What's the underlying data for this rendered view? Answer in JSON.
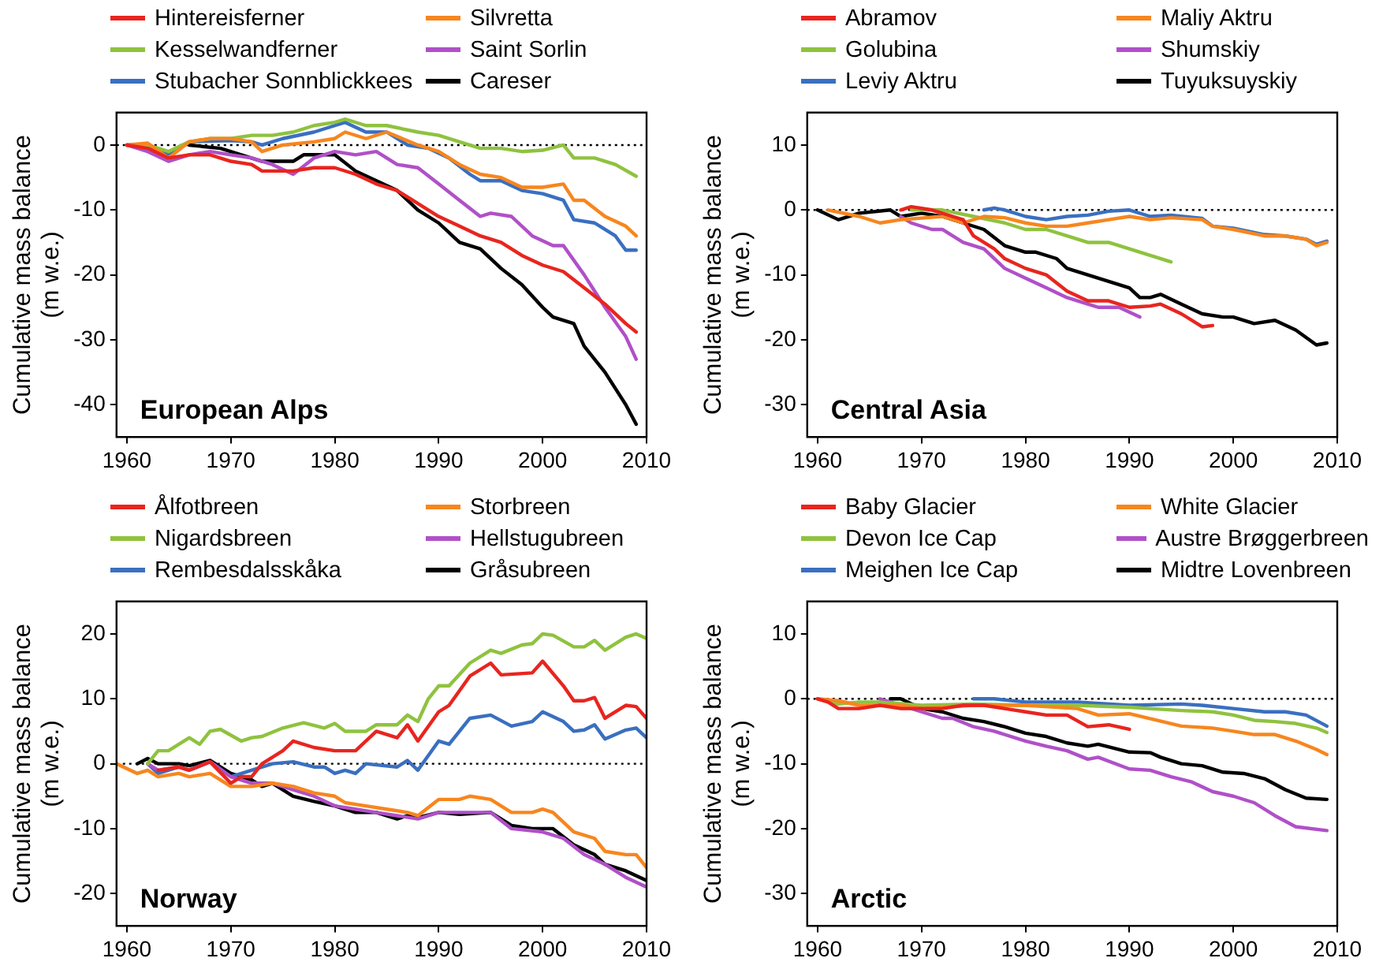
{
  "chart_data": [
    {
      "type": "line",
      "ylabel": "Cumulative mass balance (m w.e.)",
      "legend": "top",
      "annotations": [
        "European Alps"
      ],
      "xlim": [
        1959,
        2010
      ],
      "xticks": [
        1960,
        1970,
        1980,
        1990,
        2000,
        2010
      ],
      "ylim": [
        -45,
        5
      ],
      "yticks": [
        -40,
        -30,
        -20,
        -10,
        0
      ],
      "ref_lines": [
        {
          "axis": "y",
          "value": 0,
          "color": "#000000",
          "line_style": "dotted"
        }
      ],
      "series": [
        {
          "name": "Hintereisferner",
          "color": "#e8251f",
          "x": [
            1960,
            1962,
            1964,
            1966,
            1968,
            1970,
            1972,
            1973,
            1976,
            1978,
            1980,
            1982,
            1984,
            1986,
            1988,
            1990,
            1992,
            1994,
            1996,
            1998,
            2000,
            2002,
            2004,
            2006,
            2008,
            2009
          ],
          "values": [
            0,
            -0.5,
            -2,
            -1.5,
            -1.5,
            -2.5,
            -3,
            -4,
            -4,
            -3.5,
            -3.5,
            -4.5,
            -6,
            -7,
            -9,
            -11,
            -12.5,
            -14,
            -15,
            -17,
            -18.5,
            -19.5,
            -22,
            -24.5,
            -27.5,
            -28.8
          ]
        },
        {
          "name": "Silvretta",
          "color": "#f7861e",
          "x": [
            1960,
            1962,
            1964,
            1966,
            1968,
            1970,
            1972,
            1973,
            1975,
            1978,
            1980,
            1981,
            1983,
            1985,
            1988,
            1990,
            1992,
            1994,
            1996,
            1998,
            2000,
            2002,
            2003,
            2004,
            2006,
            2008,
            2009
          ],
          "values": [
            0,
            0.3,
            -2,
            0.5,
            1,
            1,
            0.5,
            -1,
            0,
            0.5,
            1,
            2,
            1,
            2,
            0,
            -1,
            -3,
            -4.5,
            -5,
            -6.5,
            -6.5,
            -6,
            -8.5,
            -8.5,
            -11,
            -12.5,
            -14
          ]
        },
        {
          "name": "Kesselwandferner",
          "color": "#8fc23f",
          "x": [
            1960,
            1962,
            1964,
            1966,
            1968,
            1970,
            1972,
            1974,
            1976,
            1978,
            1980,
            1981,
            1983,
            1985,
            1988,
            1990,
            1992,
            1994,
            1996,
            1998,
            2000,
            2002,
            2003,
            2005,
            2007,
            2009
          ],
          "values": [
            0,
            0,
            -1,
            0.5,
            1,
            1,
            1.5,
            1.5,
            2,
            3,
            3.5,
            4,
            3,
            3,
            2,
            1.5,
            0.5,
            -0.5,
            -0.5,
            -1,
            -0.8,
            0,
            -2,
            -2,
            -3,
            -4.8
          ]
        },
        {
          "name": "Saint Sorlin",
          "color": "#b050c8",
          "x": [
            1960,
            1962,
            1964,
            1966,
            1968,
            1970,
            1972,
            1974,
            1976,
            1978,
            1980,
            1982,
            1984,
            1986,
            1988,
            1990,
            1992,
            1994,
            1995,
            1997,
            1999,
            2001,
            2002,
            2004,
            2006,
            2008,
            2009
          ],
          "values": [
            0,
            -1,
            -2.5,
            -1.5,
            -1,
            -1.5,
            -2,
            -3,
            -4.5,
            -2,
            -1,
            -1.5,
            -1,
            -3,
            -3.5,
            -6,
            -8.5,
            -11,
            -10.5,
            -11,
            -14,
            -15.5,
            -15.5,
            -20,
            -25,
            -29.5,
            -33
          ]
        },
        {
          "name": "Stubacher Sonnblickkees",
          "color": "#3a6fc0",
          "x": [
            1960,
            1962,
            1964,
            1966,
            1968,
            1970,
            1972,
            1973,
            1975,
            1978,
            1980,
            1981,
            1983,
            1985,
            1987,
            1989,
            1991,
            1993,
            1994,
            1996,
            1998,
            2000,
            2002,
            2003,
            2005,
            2007,
            2008,
            2009
          ],
          "values": [
            0,
            0,
            -1.5,
            0.5,
            0.6,
            0.7,
            0.5,
            0,
            1,
            2,
            3,
            3.5,
            2,
            2,
            0,
            -0.5,
            -2,
            -4.5,
            -5.5,
            -5.5,
            -7,
            -7.5,
            -8.5,
            -11.5,
            -12,
            -14,
            -16.2,
            -16.2
          ]
        },
        {
          "name": "Careser",
          "color": "#000000",
          "x": [
            1966,
            1969,
            1971,
            1973,
            1976,
            1977,
            1980,
            1982,
            1984,
            1986,
            1988,
            1990,
            1992,
            1994,
            1996,
            1998,
            2000,
            2001,
            2003,
            2004,
            2006,
            2008,
            2009
          ],
          "values": [
            0,
            -0.5,
            -1.5,
            -2.5,
            -2.5,
            -1.5,
            -1.5,
            -4,
            -5.5,
            -7,
            -10,
            -12,
            -15,
            -16,
            -19,
            -21.5,
            -25,
            -26.5,
            -27.5,
            -31,
            -35,
            -40,
            -43
          ]
        }
      ]
    },
    {
      "type": "line",
      "ylabel": "Cumulative mass balance (m w.e.)",
      "legend": "top",
      "annotations": [
        "Central Asia"
      ],
      "xlim": [
        1959,
        2010
      ],
      "xticks": [
        1960,
        1970,
        1980,
        1990,
        2000,
        2010
      ],
      "ylim": [
        -35,
        15
      ],
      "yticks": [
        -30,
        -20,
        -10,
        0,
        10
      ],
      "ref_lines": [
        {
          "axis": "y",
          "value": 0,
          "color": "#000000",
          "line_style": "dotted"
        }
      ],
      "series": [
        {
          "name": "Abramov",
          "color": "#e8251f",
          "x": [
            1968,
            1969,
            1971,
            1973,
            1974,
            1975,
            1977,
            1978,
            1980,
            1982,
            1984,
            1986,
            1988,
            1990,
            1992,
            1993,
            1995,
            1997,
            1998
          ],
          "values": [
            0,
            0.5,
            0,
            -1,
            -1.5,
            -4,
            -6,
            -7.5,
            -9,
            -10,
            -12.5,
            -14,
            -14,
            -15,
            -14.8,
            -14.5,
            -16,
            -18,
            -17.8
          ]
        },
        {
          "name": "Maliy Aktru",
          "color": "#f7861e",
          "x": [
            1961,
            1964,
            1966,
            1968,
            1972,
            1974,
            1976,
            1978,
            1980,
            1982,
            1984,
            1986,
            1988,
            1990,
            1992,
            1994,
            1997,
            1998,
            2000,
            2003,
            2005,
            2007,
            2008,
            2009
          ],
          "values": [
            0,
            -1,
            -2,
            -1.5,
            -1,
            -2,
            -1,
            -1.2,
            -2,
            -2.5,
            -2.5,
            -2,
            -1.5,
            -1,
            -1.5,
            -1.2,
            -1.5,
            -2.5,
            -3,
            -4,
            -4,
            -4.5,
            -5.5,
            -5
          ]
        },
        {
          "name": "Golubina",
          "color": "#8fc23f",
          "x": [
            1969,
            1972,
            1975,
            1978,
            1980,
            1982,
            1984,
            1986,
            1988,
            1990,
            1992,
            1994
          ],
          "values": [
            0,
            0,
            -1,
            -2,
            -3,
            -3,
            -4,
            -5,
            -5,
            -6,
            -7,
            -8
          ]
        },
        {
          "name": "Shumskiy",
          "color": "#b050c8",
          "x": [
            1968,
            1969,
            1971,
            1972,
            1974,
            1976,
            1978,
            1980,
            1982,
            1984,
            1986,
            1987,
            1989,
            1991
          ],
          "values": [
            -1,
            -2,
            -3,
            -3,
            -5,
            -6,
            -9,
            -10.5,
            -12,
            -13.5,
            -14.5,
            -15,
            -15,
            -16.5
          ]
        },
        {
          "name": "Leviy Aktru",
          "color": "#3a6fc0",
          "x": [
            1976,
            1977,
            1978,
            1980,
            1982,
            1984,
            1986,
            1988,
            1990,
            1992,
            1994,
            1997,
            1998,
            2000,
            2003,
            2005,
            2007,
            2008,
            2009
          ],
          "values": [
            0,
            0.3,
            0,
            -1,
            -1.5,
            -1,
            -0.8,
            -0.2,
            0,
            -1,
            -0.8,
            -1.3,
            -2.5,
            -2.8,
            -3.8,
            -4,
            -4.5,
            -5.3,
            -4.8
          ]
        },
        {
          "name": "Tuyuksuyskiy",
          "color": "#000000",
          "x": [
            1960,
            1962,
            1964,
            1967,
            1968,
            1970,
            1972,
            1974,
            1976,
            1978,
            1980,
            1981,
            1983,
            1984,
            1986,
            1988,
            1990,
            1991,
            1992,
            1993,
            1995,
            1997,
            1999,
            2000,
            2002,
            2004,
            2006,
            2008,
            2009
          ],
          "values": [
            0,
            -1.5,
            -0.5,
            0,
            -1,
            -0.5,
            -1,
            -2,
            -3,
            -5.5,
            -6.5,
            -6.5,
            -7.5,
            -9,
            -10,
            -11,
            -12,
            -13.5,
            -13.5,
            -13,
            -14.5,
            -16,
            -16.5,
            -16.5,
            -17.5,
            -17,
            -18.5,
            -20.8,
            -20.5
          ]
        }
      ]
    },
    {
      "type": "line",
      "ylabel": "Cumulative mass balance (m w.e.)",
      "legend": "top",
      "annotations": [
        "Norway"
      ],
      "xlim": [
        1959,
        2010
      ],
      "xticks": [
        1960,
        1970,
        1980,
        1990,
        2000,
        2010
      ],
      "ylim": [
        -25,
        25
      ],
      "yticks": [
        -20,
        -10,
        0,
        10,
        20
      ],
      "ref_lines": [
        {
          "axis": "y",
          "value": 0,
          "color": "#000000",
          "line_style": "dotted"
        }
      ],
      "series": [
        {
          "name": "Ålfotbreen",
          "color": "#e8251f",
          "x": [
            1963,
            1965,
            1966,
            1968,
            1970,
            1971,
            1972,
            1973,
            1975,
            1976,
            1978,
            1980,
            1982,
            1984,
            1986,
            1987,
            1988,
            1990,
            1991,
            1993,
            1995,
            1996,
            1999,
            2000,
            2002,
            2003,
            2004,
            2005,
            2006,
            2008,
            2009,
            2010
          ],
          "values": [
            -1,
            -0.5,
            -1,
            0.3,
            -3,
            -2,
            -2,
            0,
            2,
            3.5,
            2.5,
            2,
            2,
            5,
            4,
            6,
            3.5,
            8,
            9,
            13.5,
            15.5,
            13.7,
            14,
            15.8,
            12,
            9.7,
            9.7,
            10.2,
            7,
            9,
            8.8,
            7
          ]
        },
        {
          "name": "Storbreen",
          "color": "#f7861e",
          "x": [
            1959,
            1961,
            1962,
            1963,
            1965,
            1966,
            1968,
            1970,
            1972,
            1974,
            1976,
            1978,
            1980,
            1981,
            1983,
            1985,
            1987,
            1988,
            1990,
            1992,
            1993,
            1995,
            1997,
            1999,
            2000,
            2001,
            2003,
            2005,
            2006,
            2008,
            2009,
            2010
          ],
          "values": [
            0,
            -1.5,
            -1,
            -2,
            -1.5,
            -2,
            -1.5,
            -3.5,
            -3.5,
            -3,
            -3.5,
            -4.5,
            -5,
            -6,
            -6.5,
            -7,
            -7.5,
            -8,
            -5.5,
            -5.5,
            -5,
            -5.5,
            -7.5,
            -7.5,
            -7,
            -7.5,
            -10.5,
            -11.5,
            -13.5,
            -14,
            -14,
            -16
          ]
        },
        {
          "name": "Nigardsbreen",
          "color": "#8fc23f",
          "x": [
            1962,
            1963,
            1964,
            1966,
            1967,
            1968,
            1969,
            1971,
            1972,
            1973,
            1975,
            1977,
            1979,
            1980,
            1981,
            1983,
            1984,
            1986,
            1987,
            1988,
            1989,
            1990,
            1991,
            1993,
            1995,
            1996,
            1998,
            1999,
            2000,
            2001,
            2003,
            2004,
            2005,
            2006,
            2008,
            2009,
            2010
          ],
          "values": [
            0,
            2,
            2,
            4,
            3,
            5,
            5.3,
            3.5,
            4,
            4.2,
            5.5,
            6.3,
            5.5,
            6.2,
            5,
            5,
            6,
            6,
            7.5,
            6.5,
            10,
            12,
            12,
            15.5,
            17.5,
            17,
            18.3,
            18.5,
            20,
            19.8,
            18,
            18,
            19,
            17.5,
            19.5,
            20,
            19.3
          ]
        },
        {
          "name": "Hellstugubreen",
          "color": "#b050c8",
          "x": [
            1962,
            1963,
            1965,
            1966,
            1968,
            1970,
            1972,
            1974,
            1976,
            1978,
            1980,
            1982,
            1984,
            1986,
            1988,
            1990,
            1992,
            1995,
            1997,
            2000,
            2002,
            2004,
            2006,
            2008,
            2010
          ],
          "values": [
            0,
            -1,
            -0.5,
            -1,
            0.3,
            -2,
            -3,
            -3,
            -4,
            -5,
            -6.5,
            -7,
            -7.5,
            -8,
            -8.5,
            -7.5,
            -7.5,
            -7.5,
            -10,
            -10.5,
            -11.5,
            -14,
            -15.5,
            -17.5,
            -19
          ]
        },
        {
          "name": "Rembesdalsskåka",
          "color": "#3a6fc0",
          "x": [
            1962,
            1963,
            1965,
            1966,
            1968,
            1970,
            1972,
            1974,
            1976,
            1978,
            1979,
            1980,
            1981,
            1982,
            1983,
            1986,
            1987,
            1988,
            1990,
            1991,
            1993,
            1995,
            1997,
            1999,
            2000,
            2002,
            2003,
            2004,
            2005,
            2006,
            2008,
            2009,
            2010
          ],
          "values": [
            0,
            -1.5,
            -0.5,
            -1,
            0.3,
            -2,
            -1,
            0,
            0.3,
            -0.5,
            -0.5,
            -1.5,
            -1,
            -1.5,
            0,
            -0.5,
            0.5,
            -1,
            3.5,
            3,
            7,
            7.5,
            5.8,
            6.5,
            8,
            6.5,
            5,
            5.2,
            6,
            3.8,
            5.2,
            5.5,
            4
          ]
        },
        {
          "name": "Gråsubreen",
          "color": "#000000",
          "x": [
            1961,
            1962,
            1963,
            1965,
            1966,
            1968,
            1970,
            1972,
            1973,
            1974,
            1976,
            1978,
            1980,
            1982,
            1984,
            1986,
            1987,
            1988,
            1990,
            1992,
            1995,
            1997,
            1999,
            2001,
            2003,
            2005,
            2006,
            2008,
            2010
          ],
          "values": [
            0,
            0.8,
            0,
            0,
            -0.3,
            0.5,
            -1.5,
            -2.5,
            -3.5,
            -3,
            -5,
            -5.8,
            -6.5,
            -7.5,
            -7.5,
            -8.5,
            -8,
            -8.3,
            -7.5,
            -7.8,
            -7.5,
            -9.5,
            -10,
            -10,
            -12.5,
            -14,
            -15.5,
            -16.5,
            -18
          ]
        }
      ]
    },
    {
      "type": "line",
      "ylabel": "Cumulative mass balance (m w.e.)",
      "legend": "top",
      "annotations": [
        "Arctic"
      ],
      "xlim": [
        1959,
        2010
      ],
      "xticks": [
        1960,
        1970,
        1980,
        1990,
        2000,
        2010
      ],
      "ylim": [
        -35,
        15
      ],
      "yticks": [
        -30,
        -20,
        -10,
        0,
        10
      ],
      "ref_lines": [
        {
          "axis": "y",
          "value": 0,
          "color": "#000000",
          "line_style": "dotted"
        }
      ],
      "series": [
        {
          "name": "Baby Glacier",
          "color": "#e8251f",
          "x": [
            1960,
            1961,
            1962,
            1964,
            1966,
            1968,
            1970,
            1972,
            1974,
            1976,
            1978,
            1980,
            1982,
            1984,
            1986,
            1988,
            1990
          ],
          "values": [
            0,
            -0.5,
            -1.5,
            -1.5,
            -1,
            -1.5,
            -1.5,
            -1.5,
            -1,
            -1,
            -1.5,
            -2,
            -2.5,
            -2.5,
            -4.3,
            -4,
            -4.7
          ]
        },
        {
          "name": "White Glacier",
          "color": "#f7861e",
          "x": [
            1960,
            1962,
            1964,
            1968,
            1970,
            1975,
            1980,
            1985,
            1987,
            1990,
            1995,
            1998,
            2000,
            2002,
            2004,
            2006,
            2008,
            2009
          ],
          "values": [
            0,
            -0.3,
            -1,
            -1,
            -1.5,
            -1,
            -1,
            -1.5,
            -2.5,
            -2.3,
            -4.2,
            -4.5,
            -5,
            -5.5,
            -5.5,
            -6.5,
            -7.8,
            -8.6
          ]
        },
        {
          "name": "Devon Ice Cap",
          "color": "#8fc23f",
          "x": [
            1960,
            1962,
            1964,
            1966,
            1970,
            1975,
            1980,
            1985,
            1990,
            1995,
            1998,
            2000,
            2002,
            2004,
            2006,
            2008,
            2009
          ],
          "values": [
            0,
            -0.8,
            -0.5,
            -0.5,
            -1,
            -0.8,
            -1,
            -1,
            -1.3,
            -1.8,
            -2,
            -2.5,
            -3.3,
            -3.5,
            -3.8,
            -4.5,
            -5.2
          ]
        },
        {
          "name": "Austre Brøggerbreen",
          "color": "#b050c8",
          "x": [
            1966,
            1968,
            1970,
            1972,
            1973,
            1975,
            1977,
            1980,
            1982,
            1984,
            1986,
            1987,
            1990,
            1992,
            1994,
            1996,
            1998,
            2000,
            2002,
            2004,
            2006,
            2009
          ],
          "values": [
            0,
            -1,
            -2,
            -3,
            -3,
            -4.3,
            -5,
            -6.5,
            -7.3,
            -8,
            -9.3,
            -9,
            -10.8,
            -11,
            -12,
            -12.8,
            -14.3,
            -15,
            -16,
            -18,
            -19.7,
            -20.3
          ]
        },
        {
          "name": "Meighen Ice Cap",
          "color": "#3a6fc0",
          "x": [
            1975,
            1977,
            1980,
            1985,
            1990,
            1995,
            1997,
            2000,
            2003,
            2005,
            2007,
            2009
          ],
          "values": [
            0,
            0,
            -0.5,
            -0.5,
            -1,
            -0.8,
            -1,
            -1.5,
            -2,
            -2,
            -2.5,
            -4.2
          ]
        },
        {
          "name": "Midtre Lovenbreen",
          "color": "#000000",
          "x": [
            1967,
            1968,
            1970,
            1972,
            1974,
            1976,
            1978,
            1980,
            1982,
            1984,
            1986,
            1987,
            1990,
            1992,
            1993,
            1995,
            1997,
            1999,
            2001,
            2003,
            2005,
            2007,
            2009
          ],
          "values": [
            0,
            0,
            -1.5,
            -2,
            -3,
            -3.5,
            -4.3,
            -5.3,
            -5.8,
            -6.8,
            -7.3,
            -7,
            -8.2,
            -8.3,
            -9,
            -10,
            -10.3,
            -11.3,
            -11.5,
            -12.3,
            -14,
            -15.3,
            -15.5
          ]
        }
      ]
    }
  ]
}
